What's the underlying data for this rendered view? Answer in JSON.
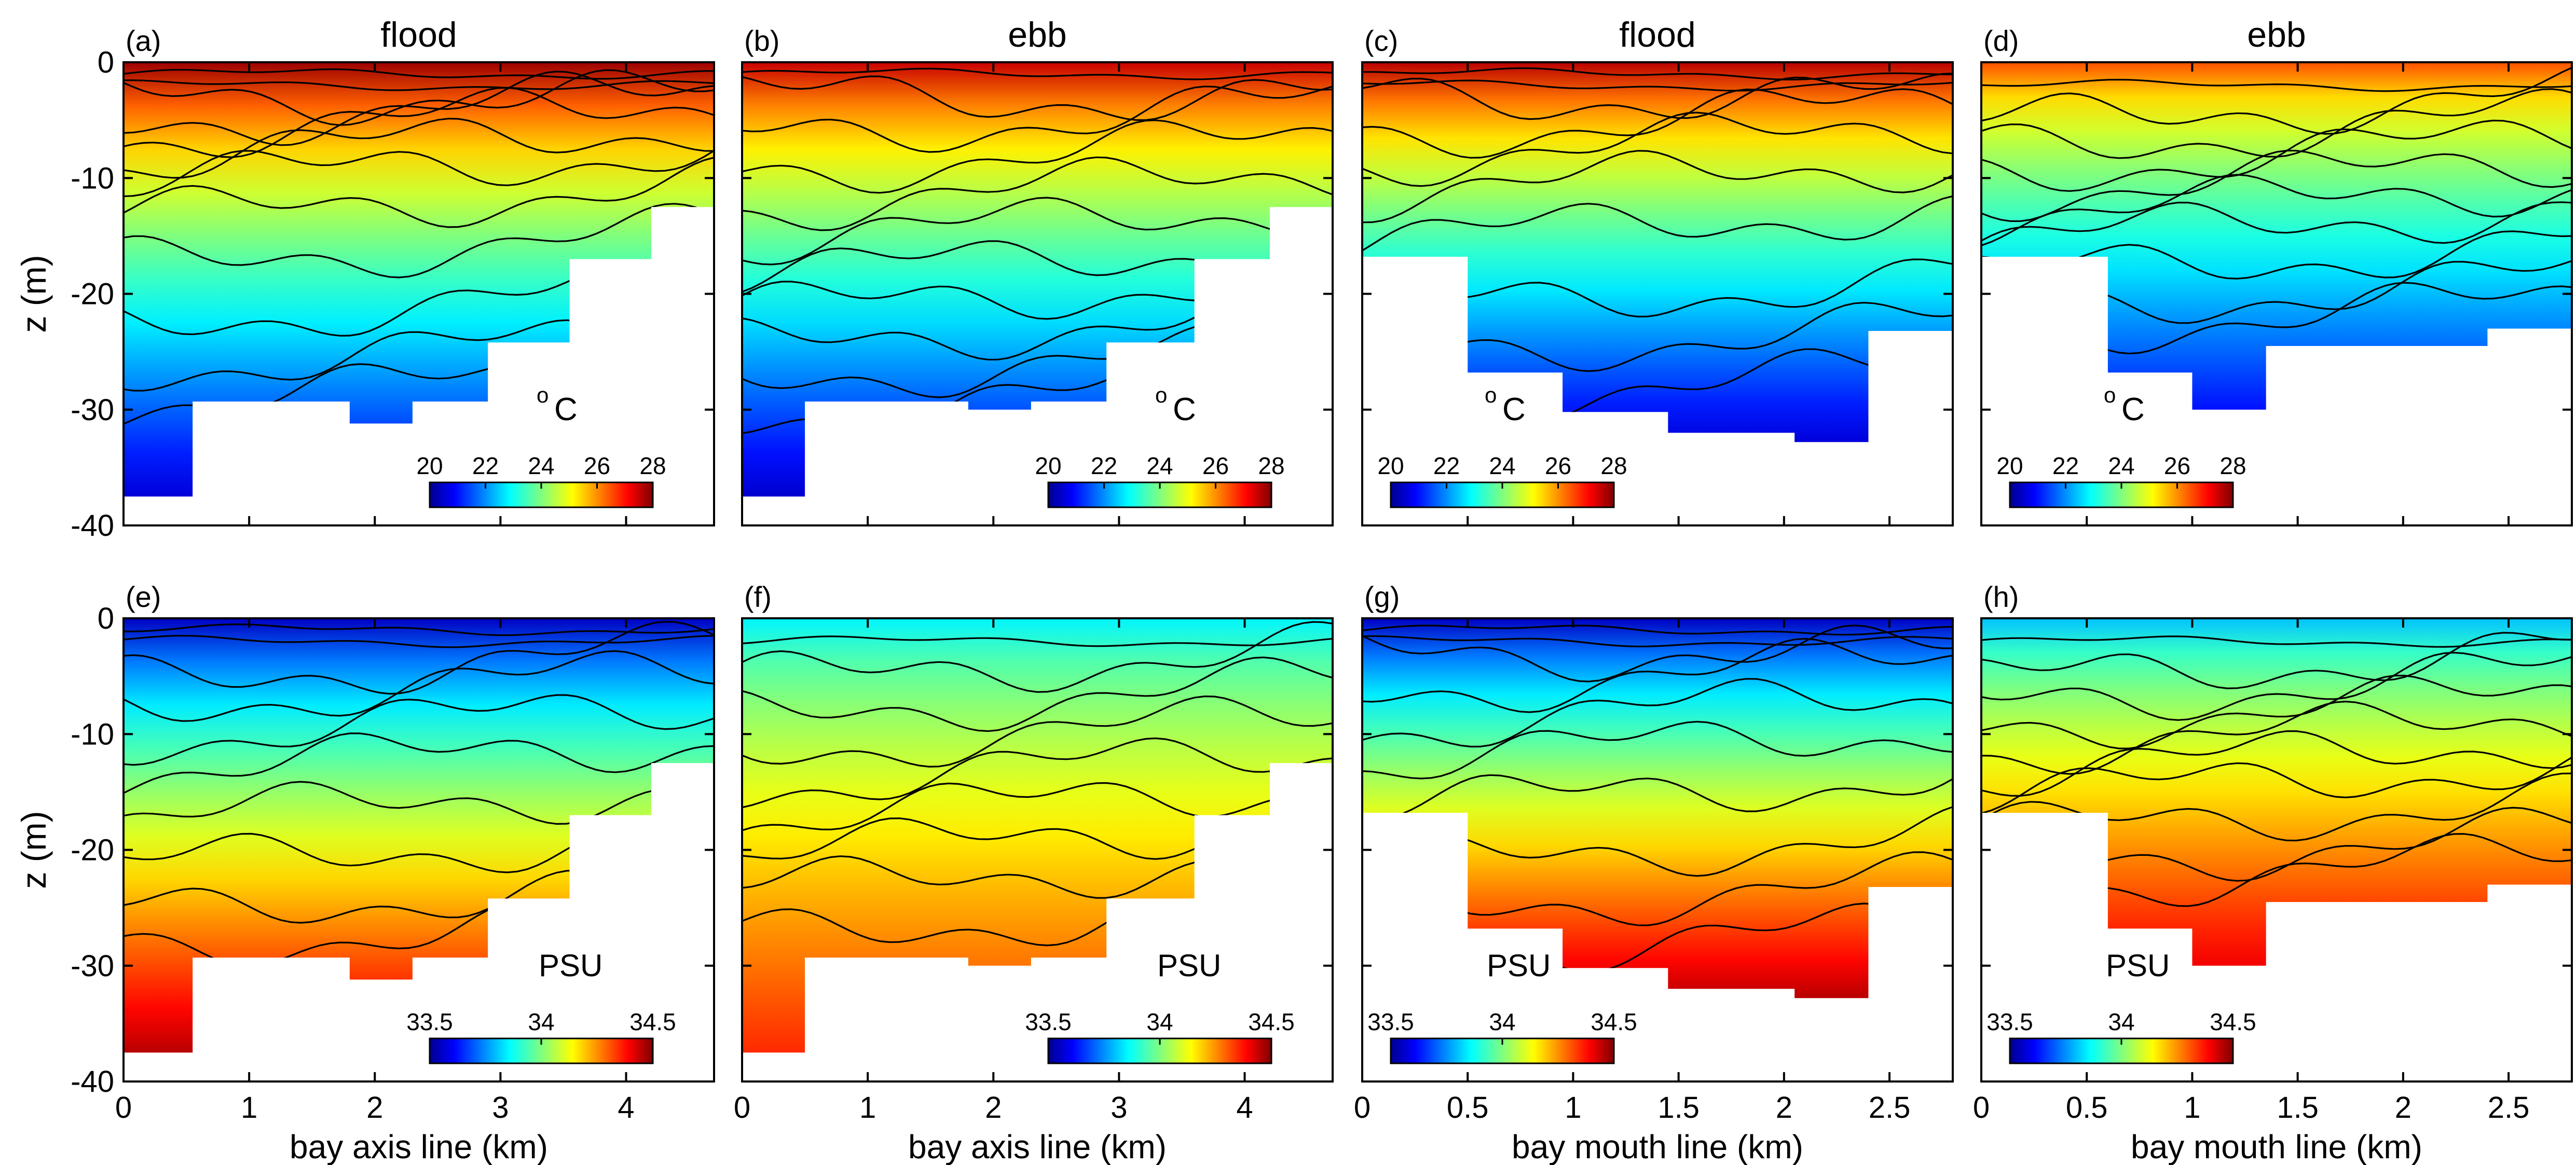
{
  "chart_data": [
    {
      "panel_label": "(a)",
      "title": "flood",
      "type": "heatmap",
      "variable": "temperature",
      "unit_label": "C",
      "unit_super": "o",
      "x_range": [
        0,
        4.7
      ],
      "y_range": [
        -40,
        0
      ],
      "xticks": [],
      "yticks": [
        "0",
        "-10",
        "-20",
        "-30",
        "-40"
      ],
      "xlabel": "",
      "ylabel": "z (m)",
      "bottom_profile": [
        [
          0,
          -37.5
        ],
        [
          0.55,
          -37.5
        ],
        [
          0.55,
          -29.3
        ],
        [
          1.8,
          -29.3
        ],
        [
          1.8,
          -31.2
        ],
        [
          2.3,
          -31.2
        ],
        [
          2.3,
          -29.3
        ],
        [
          2.9,
          -29.3
        ],
        [
          2.9,
          -24.2
        ],
        [
          3.55,
          -24.2
        ],
        [
          3.55,
          -17.0
        ],
        [
          4.2,
          -17.0
        ],
        [
          4.2,
          -12.5
        ],
        [
          4.7,
          -12.5
        ]
      ],
      "contour_depths_m": [
        -1,
        -2,
        -3,
        -4,
        -5,
        -7,
        -9,
        -12,
        -16,
        -21,
        -25,
        -28
      ],
      "surface_value": 27.8,
      "bottom_value": 20.6,
      "colorbar": {
        "min": 20,
        "max": 28,
        "ticks": [
          "20",
          "22",
          "24",
          "26",
          "28"
        ]
      }
    },
    {
      "panel_label": "(b)",
      "title": "ebb",
      "type": "heatmap",
      "variable": "temperature",
      "unit_label": "C",
      "unit_super": "o",
      "x_range": [
        0,
        4.7
      ],
      "y_range": [
        -40,
        0
      ],
      "xticks": [],
      "yticks": [],
      "xlabel": "",
      "ylabel": "",
      "bottom_profile": [
        [
          0,
          -37.5
        ],
        [
          0.5,
          -37.5
        ],
        [
          0.5,
          -29.3
        ],
        [
          1.8,
          -29.3
        ],
        [
          1.8,
          -30.0
        ],
        [
          2.3,
          -30.0
        ],
        [
          2.3,
          -29.3
        ],
        [
          2.9,
          -29.3
        ],
        [
          2.9,
          -24.2
        ],
        [
          3.6,
          -24.2
        ],
        [
          3.6,
          -17.0
        ],
        [
          4.2,
          -17.0
        ],
        [
          4.2,
          -12.5
        ],
        [
          4.7,
          -12.5
        ]
      ],
      "contour_depths_m": [
        -1,
        -3,
        -5,
        -8,
        -11,
        -14,
        -17,
        -20,
        -23,
        -26,
        -29
      ],
      "surface_value": 27.5,
      "bottom_value": 20.5,
      "colorbar": {
        "min": 20,
        "max": 28,
        "ticks": [
          "20",
          "22",
          "24",
          "26",
          "28"
        ]
      }
    },
    {
      "panel_label": "(c)",
      "title": "flood",
      "type": "heatmap",
      "variable": "temperature",
      "unit_label": "C",
      "unit_super": "o",
      "x_range": [
        0,
        2.8
      ],
      "y_range": [
        -40,
        0
      ],
      "xticks": [],
      "yticks": [],
      "xlabel": "",
      "ylabel": "",
      "bottom_profile": [
        [
          0,
          -16.8
        ],
        [
          0.5,
          -16.8
        ],
        [
          0.5,
          -26.8
        ],
        [
          0.95,
          -26.8
        ],
        [
          0.95,
          -30.2
        ],
        [
          1.45,
          -30.2
        ],
        [
          1.45,
          -32.0
        ],
        [
          2.05,
          -32.0
        ],
        [
          2.05,
          -32.8
        ],
        [
          2.4,
          -32.8
        ],
        [
          2.4,
          -23.2
        ],
        [
          2.8,
          -23.2
        ]
      ],
      "contour_depths_m": [
        -1,
        -2,
        -3,
        -5,
        -7,
        -10,
        -14,
        -20,
        -24,
        -28
      ],
      "surface_value": 27.6,
      "bottom_value": 20.6,
      "colorbar": {
        "min": 20,
        "max": 28,
        "ticks": [
          "20",
          "22",
          "24",
          "26",
          "28"
        ]
      }
    },
    {
      "panel_label": "(d)",
      "title": "ebb",
      "type": "heatmap",
      "variable": "temperature",
      "unit_label": "C",
      "unit_super": "o",
      "x_range": [
        0,
        2.8
      ],
      "y_range": [
        -40,
        0
      ],
      "xticks": [],
      "yticks": [],
      "xlabel": "",
      "ylabel": "",
      "bottom_profile": [
        [
          0,
          -16.8
        ],
        [
          0.6,
          -16.8
        ],
        [
          0.6,
          -26.8
        ],
        [
          1.0,
          -26.8
        ],
        [
          1.0,
          -30.0
        ],
        [
          1.35,
          -30.0
        ],
        [
          1.35,
          -24.5
        ],
        [
          2.4,
          -24.5
        ],
        [
          2.4,
          -23.0
        ],
        [
          2.8,
          -23.0
        ]
      ],
      "contour_depths_m": [
        -2,
        -4,
        -6,
        -8,
        -10,
        -12,
        -14,
        -17,
        -20,
        -22
      ],
      "surface_value": 26.5,
      "bottom_value": 21.0,
      "colorbar": {
        "min": 20,
        "max": 28,
        "ticks": [
          "20",
          "22",
          "24",
          "26",
          "28"
        ]
      }
    },
    {
      "panel_label": "(e)",
      "title": "",
      "type": "heatmap",
      "variable": "salinity",
      "unit_label": "PSU",
      "unit_super": "",
      "x_range": [
        0,
        4.7
      ],
      "y_range": [
        -40,
        0
      ],
      "xticks": [
        "0",
        "1",
        "2",
        "3",
        "4"
      ],
      "yticks": [
        "0",
        "-10",
        "-20",
        "-30",
        "-40"
      ],
      "xlabel": "bay axis line (km)",
      "ylabel": "z (m)",
      "bottom_profile": [
        [
          0,
          -37.5
        ],
        [
          0.55,
          -37.5
        ],
        [
          0.55,
          -29.3
        ],
        [
          1.8,
          -29.3
        ],
        [
          1.8,
          -31.2
        ],
        [
          2.3,
          -31.2
        ],
        [
          2.3,
          -29.3
        ],
        [
          2.9,
          -29.3
        ],
        [
          2.9,
          -24.2
        ],
        [
          3.55,
          -24.2
        ],
        [
          3.55,
          -17.0
        ],
        [
          4.2,
          -17.0
        ],
        [
          4.2,
          -12.5
        ],
        [
          4.7,
          -12.5
        ]
      ],
      "contour_depths_m": [
        -1,
        -2,
        -4,
        -6,
        -9,
        -12,
        -16,
        -20,
        -24,
        -27
      ],
      "surface_value": 33.55,
      "bottom_value": 34.45,
      "colorbar": {
        "min": 33.5,
        "max": 34.5,
        "ticks": [
          "33.5",
          "34",
          "34.5"
        ]
      }
    },
    {
      "panel_label": "(f)",
      "title": "",
      "type": "heatmap",
      "variable": "salinity",
      "unit_label": "PSU",
      "unit_super": "",
      "x_range": [
        0,
        4.7
      ],
      "y_range": [
        -40,
        0
      ],
      "xticks": [
        "0",
        "1",
        "2",
        "3",
        "4"
      ],
      "yticks": [],
      "xlabel": "bay axis line (km)",
      "ylabel": "",
      "bottom_profile": [
        [
          0,
          -37.5
        ],
        [
          0.5,
          -37.5
        ],
        [
          0.5,
          -29.3
        ],
        [
          1.8,
          -29.3
        ],
        [
          1.8,
          -30.0
        ],
        [
          2.3,
          -30.0
        ],
        [
          2.3,
          -29.3
        ],
        [
          2.9,
          -29.3
        ],
        [
          2.9,
          -24.2
        ],
        [
          3.6,
          -24.2
        ],
        [
          3.6,
          -17.0
        ],
        [
          4.2,
          -17.0
        ],
        [
          4.2,
          -12.5
        ],
        [
          4.7,
          -12.5
        ]
      ],
      "contour_depths_m": [
        -2,
        -4,
        -7,
        -10,
        -13,
        -16,
        -19,
        -22,
        -26
      ],
      "surface_value": 33.85,
      "bottom_value": 34.35,
      "colorbar": {
        "min": 33.5,
        "max": 34.5,
        "ticks": [
          "33.5",
          "34",
          "34.5"
        ]
      }
    },
    {
      "panel_label": "(g)",
      "title": "",
      "type": "heatmap",
      "variable": "salinity",
      "unit_label": "PSU",
      "unit_super": "",
      "x_range": [
        0,
        2.8
      ],
      "y_range": [
        -40,
        0
      ],
      "xticks": [
        "0",
        "0.5",
        "1",
        "1.5",
        "2",
        "2.5"
      ],
      "yticks": [],
      "xlabel": "bay mouth line (km)",
      "ylabel": "",
      "bottom_profile": [
        [
          0,
          -16.8
        ],
        [
          0.5,
          -16.8
        ],
        [
          0.5,
          -26.8
        ],
        [
          0.95,
          -26.8
        ],
        [
          0.95,
          -30.2
        ],
        [
          1.45,
          -30.2
        ],
        [
          1.45,
          -32.0
        ],
        [
          2.05,
          -32.0
        ],
        [
          2.05,
          -32.8
        ],
        [
          2.4,
          -32.8
        ],
        [
          2.4,
          -23.2
        ],
        [
          2.8,
          -23.2
        ]
      ],
      "contour_depths_m": [
        -1,
        -2,
        -3,
        -5,
        -8,
        -11,
        -15,
        -20,
        -24,
        -28
      ],
      "surface_value": 33.55,
      "bottom_value": 34.45,
      "colorbar": {
        "min": 33.5,
        "max": 34.5,
        "ticks": [
          "33.5",
          "34",
          "34.5"
        ]
      }
    },
    {
      "panel_label": "(h)",
      "title": "",
      "type": "heatmap",
      "variable": "salinity",
      "unit_label": "PSU",
      "unit_super": "",
      "x_range": [
        0,
        2.8
      ],
      "y_range": [
        -40,
        0
      ],
      "xticks": [
        "0",
        "0.5",
        "1",
        "1.5",
        "2",
        "2.5"
      ],
      "yticks": [],
      "xlabel": "bay mouth line (km)",
      "ylabel": "",
      "bottom_profile": [
        [
          0,
          -16.8
        ],
        [
          0.6,
          -16.8
        ],
        [
          0.6,
          -26.8
        ],
        [
          1.0,
          -26.8
        ],
        [
          1.0,
          -30.0
        ],
        [
          1.35,
          -30.0
        ],
        [
          1.35,
          -24.5
        ],
        [
          2.4,
          -24.5
        ],
        [
          2.4,
          -23.0
        ],
        [
          2.8,
          -23.0
        ]
      ],
      "contour_depths_m": [
        -2,
        -4,
        -6,
        -8,
        -10,
        -12,
        -14,
        -17,
        -20,
        -22
      ],
      "surface_value": 33.8,
      "bottom_value": 34.4,
      "colorbar": {
        "min": 33.5,
        "max": 34.5,
        "ticks": [
          "33.5",
          "34",
          "34.5"
        ]
      }
    }
  ]
}
